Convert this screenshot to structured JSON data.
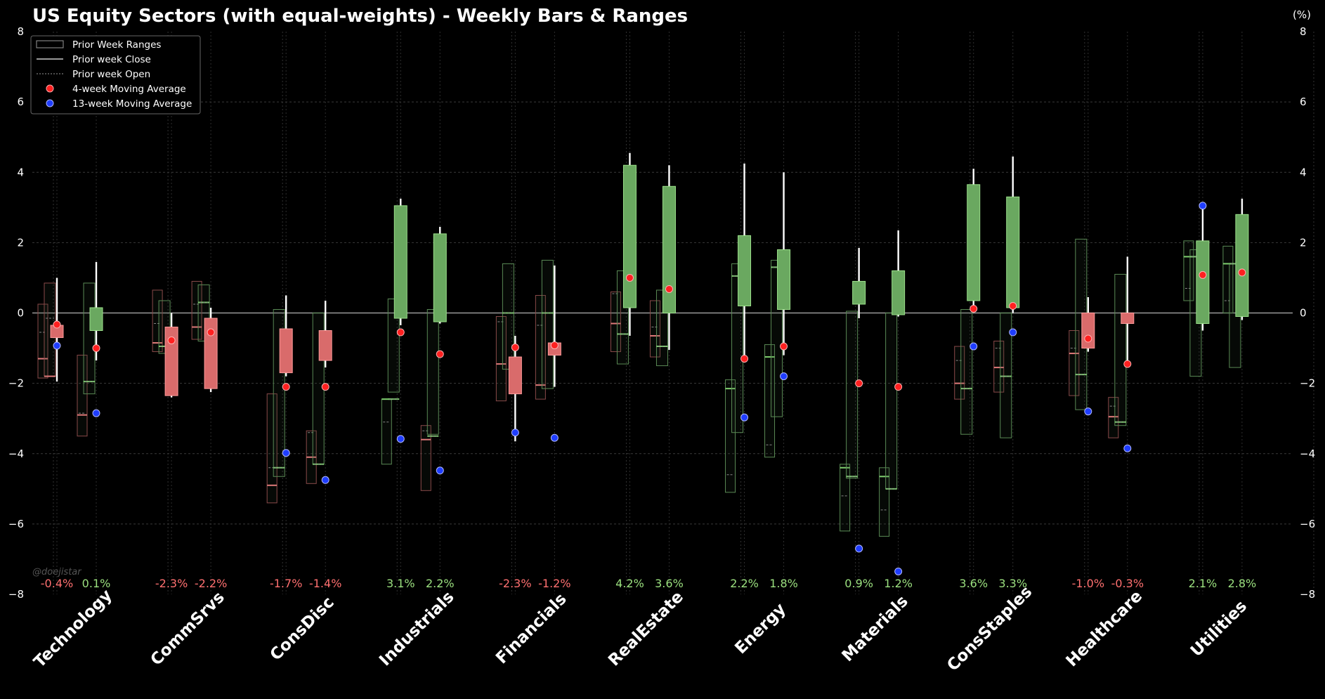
{
  "chart_data": {
    "type": "candlestick-range",
    "title": "US Equity Sectors (with equal-weights) - Weekly Bars & Ranges",
    "unit_label": "(%)",
    "watermark": "@doejistar",
    "ylim": [
      -8,
      8
    ],
    "yticks": [
      -8,
      -6,
      -4,
      -2,
      0,
      2,
      4,
      6,
      8
    ],
    "ytick_labels": [
      "−8",
      "−6",
      "−4",
      "−2",
      "0",
      "2",
      "4",
      "6",
      "8"
    ],
    "colors": {
      "up": "#6aa860",
      "up_edge": "#9be08a",
      "down": "#d96b6b",
      "down_edge": "#ff9a9a",
      "pos_text": "#9be07f",
      "neg_text": "#ff7070",
      "ma4": "#ff2020",
      "ma13": "#1f3dff"
    },
    "legend": {
      "position": "top-left",
      "entries": [
        "Prior Week Ranges",
        "Prior week Close",
        "Prior week Open",
        "4-week Moving Average",
        "13-week Moving Average"
      ]
    },
    "sectors": [
      {
        "name": "Technology",
        "bars": [
          {
            "label": "-0.4%",
            "open": -0.35,
            "close": -0.7,
            "high": 1.0,
            "low": -1.95,
            "ma4": -0.33,
            "ma13": -0.93,
            "prior": {
              "high": 0.25,
              "low": -1.85,
              "open": -0.55,
              "close": -1.3
            },
            "prior2": {
              "high": 0.85,
              "low": -1.8,
              "open": -0.15,
              "close": -1.8
            }
          },
          {
            "label": "0.1%",
            "open": -0.5,
            "close": 0.15,
            "high": 1.45,
            "low": -1.35,
            "ma4": -1.0,
            "ma13": -2.85,
            "prior": {
              "high": -1.2,
              "low": -3.5,
              "open": -2.85,
              "close": -2.9
            },
            "prior2": {
              "high": 0.85,
              "low": -2.3,
              "open": -1.95,
              "close": -1.95
            }
          }
        ]
      },
      {
        "name": "CommSrvs",
        "bars": [
          {
            "label": "-2.3%",
            "open": -0.4,
            "close": -2.35,
            "high": 0.0,
            "low": -2.4,
            "ma4": -0.78,
            "ma13": null,
            "prior": {
              "high": 0.65,
              "low": -1.1,
              "open": -0.3,
              "close": -0.85
            },
            "prior2": {
              "high": 0.35,
              "low": -1.15,
              "open": -0.95,
              "close": -0.95
            }
          },
          {
            "label": "-2.2%",
            "open": -0.15,
            "close": -2.15,
            "high": 0.15,
            "low": -2.25,
            "ma4": -0.55,
            "ma13": null,
            "prior": {
              "high": 0.9,
              "low": -0.75,
              "open": 0.25,
              "close": -0.4
            },
            "prior2": {
              "high": 0.8,
              "low": -0.8,
              "open": 0.3,
              "close": 0.3
            }
          }
        ]
      },
      {
        "name": "ConsDisc",
        "bars": [
          {
            "label": "-1.7%",
            "open": -0.45,
            "close": -1.7,
            "high": 0.5,
            "low": -1.8,
            "ma4": -2.1,
            "ma13": -3.98,
            "prior": {
              "high": -2.3,
              "low": -5.4,
              "open": -4.4,
              "close": -4.9
            },
            "prior2": {
              "high": 0.1,
              "low": -4.65,
              "open": -4.4,
              "close": -4.4
            }
          },
          {
            "label": "-1.4%",
            "open": -0.5,
            "close": -1.35,
            "high": 0.35,
            "low": -1.55,
            "ma4": -2.1,
            "ma13": -4.75,
            "prior": {
              "high": -3.35,
              "low": -4.85,
              "open": -3.4,
              "close": -4.1
            },
            "prior2": {
              "high": 0.0,
              "low": -4.3,
              "open": -4.3,
              "close": -4.3
            }
          }
        ]
      },
      {
        "name": "Industrials",
        "bars": [
          {
            "label": "3.1%",
            "open": -0.15,
            "close": 3.05,
            "high": 3.25,
            "low": -0.35,
            "ma4": -0.55,
            "ma13": -3.58,
            "prior": {
              "high": -2.45,
              "low": -4.3,
              "open": -3.1,
              "close": -2.45
            },
            "prior2": {
              "high": 0.4,
              "low": -2.25,
              "open": -2.45,
              "close": -2.45
            }
          },
          {
            "label": "2.2%",
            "open": -0.25,
            "close": 2.25,
            "high": 2.45,
            "low": -0.3,
            "ma4": -1.17,
            "ma13": -4.48,
            "prior": {
              "high": -3.2,
              "low": -5.05,
              "open": -3.35,
              "close": -3.6
            },
            "prior2": {
              "high": 0.1,
              "low": -3.45,
              "open": -3.5,
              "close": -3.5
            }
          }
        ]
      },
      {
        "name": "Financials",
        "bars": [
          {
            "label": "-2.3%",
            "open": -1.25,
            "close": -2.3,
            "high": -0.65,
            "low": -3.65,
            "ma4": -0.98,
            "ma13": -3.4,
            "prior": {
              "high": -0.1,
              "low": -2.5,
              "open": -0.25,
              "close": -1.45
            },
            "prior2": {
              "high": 1.4,
              "low": -1.6,
              "open": 0.0,
              "close": 0.0
            }
          },
          {
            "label": "-1.2%",
            "open": -0.85,
            "close": -1.2,
            "high": 1.35,
            "low": -2.1,
            "ma4": -0.92,
            "ma13": -3.55,
            "prior": {
              "high": 0.5,
              "low": -2.45,
              "open": -0.35,
              "close": -2.05
            },
            "prior2": {
              "high": 1.5,
              "low": -2.15,
              "open": 0.0,
              "close": 0.0
            }
          }
        ]
      },
      {
        "name": "RealEstate",
        "bars": [
          {
            "label": "4.2%",
            "open": 0.15,
            "close": 4.2,
            "high": 4.55,
            "low": -0.65,
            "ma4": 1.0,
            "ma13": null,
            "prior": {
              "high": 0.6,
              "low": -1.1,
              "open": 0.55,
              "close": -0.3
            },
            "prior2": {
              "high": 1.2,
              "low": -1.45,
              "open": -0.6,
              "close": -0.6
            }
          },
          {
            "label": "3.6%",
            "open": 0.0,
            "close": 3.6,
            "high": 4.2,
            "low": -1.05,
            "ma4": 0.68,
            "ma13": null,
            "prior": {
              "high": 0.35,
              "low": -1.25,
              "open": -0.4,
              "close": -0.65
            },
            "prior2": {
              "high": 0.65,
              "low": -1.5,
              "open": -0.95,
              "close": -0.95
            }
          }
        ]
      },
      {
        "name": "Energy",
        "bars": [
          {
            "label": "2.2%",
            "open": 0.2,
            "close": 2.2,
            "high": 4.25,
            "low": -1.4,
            "ma4": -1.3,
            "ma13": -2.97,
            "prior": {
              "high": -1.9,
              "low": -5.1,
              "open": -4.6,
              "close": -2.15
            },
            "prior2": {
              "high": 1.4,
              "low": -3.4,
              "open": 1.05,
              "close": 1.05
            }
          },
          {
            "label": "1.8%",
            "open": 0.1,
            "close": 1.8,
            "high": 4.0,
            "low": -1.2,
            "ma4": -0.95,
            "ma13": -1.8,
            "prior": {
              "high": -0.9,
              "low": -4.1,
              "open": -3.75,
              "close": -1.25
            },
            "prior2": {
              "high": 1.5,
              "low": -2.95,
              "open": 1.3,
              "close": 1.3
            }
          }
        ]
      },
      {
        "name": "Materials",
        "bars": [
          {
            "label": "0.9%",
            "open": 0.25,
            "close": 0.9,
            "high": 1.85,
            "low": -0.15,
            "ma4": -2.0,
            "ma13": -6.7,
            "prior": {
              "high": -4.3,
              "low": -6.2,
              "open": -5.2,
              "close": -4.4
            },
            "prior2": {
              "high": 0.05,
              "low": -4.7,
              "open": -4.65,
              "close": -4.65
            }
          },
          {
            "label": "1.2%",
            "open": -0.05,
            "close": 1.2,
            "high": 2.35,
            "low": -0.1,
            "ma4": -2.1,
            "ma13": -7.35,
            "prior": {
              "high": -4.4,
              "low": -6.35,
              "open": -5.6,
              "close": -4.65
            },
            "prior2": {
              "high": 0.0,
              "low": -5.0,
              "open": -5.0,
              "close": -5.0
            }
          }
        ]
      },
      {
        "name": "ConsStaples",
        "bars": [
          {
            "label": "3.6%",
            "open": 0.35,
            "close": 3.65,
            "high": 4.1,
            "low": 0.2,
            "ma4": 0.12,
            "ma13": -0.95,
            "prior": {
              "high": -0.95,
              "low": -2.45,
              "open": -1.35,
              "close": -2.0
            },
            "prior2": {
              "high": 0.1,
              "low": -3.45,
              "open": -2.15,
              "close": -2.15
            }
          },
          {
            "label": "3.3%",
            "open": 0.15,
            "close": 3.3,
            "high": 4.45,
            "low": 0.0,
            "ma4": 0.2,
            "ma13": -0.55,
            "prior": {
              "high": -0.8,
              "low": -2.25,
              "open": -1.0,
              "close": -1.55
            },
            "prior2": {
              "high": 0.0,
              "low": -3.55,
              "open": -1.8,
              "close": -1.8
            }
          }
        ]
      },
      {
        "name": "Healthcare",
        "bars": [
          {
            "label": "-1.0%",
            "open": 0.0,
            "close": -1.0,
            "high": 0.45,
            "low": -1.1,
            "ma4": -0.73,
            "ma13": -2.8,
            "prior": {
              "high": -0.5,
              "low": -2.35,
              "open": -1.0,
              "close": -1.15
            },
            "prior2": {
              "high": 2.1,
              "low": -2.75,
              "open": -1.75,
              "close": -1.75
            }
          },
          {
            "label": "-0.3%",
            "open": 0.0,
            "close": -0.3,
            "high": 1.6,
            "low": -1.4,
            "ma4": -1.45,
            "ma13": -3.85,
            "prior": {
              "high": -2.4,
              "low": -3.55,
              "open": -2.65,
              "close": -2.95
            },
            "prior2": {
              "high": 1.1,
              "low": -3.2,
              "open": -3.1,
              "close": -3.1
            }
          }
        ]
      },
      {
        "name": "Utilities",
        "bars": [
          {
            "label": "2.1%",
            "open": -0.3,
            "close": 2.05,
            "high": 2.95,
            "low": -0.5,
            "ma4": 1.08,
            "ma13": 3.05,
            "prior": {
              "high": 2.05,
              "low": 0.35,
              "open": 0.7,
              "close": 1.6
            },
            "prior2": {
              "high": 1.8,
              "low": -1.8,
              "open": 1.6,
              "close": 1.6
            }
          },
          {
            "label": "2.8%",
            "open": -0.1,
            "close": 2.8,
            "high": 3.25,
            "low": -0.2,
            "ma4": 1.15,
            "ma13": null,
            "prior": {
              "high": 1.9,
              "low": 0.0,
              "open": 0.35,
              "close": 1.4
            },
            "prior2": {
              "high": 1.4,
              "low": -1.55,
              "open": 1.4,
              "close": 1.4
            }
          }
        ]
      }
    ]
  }
}
